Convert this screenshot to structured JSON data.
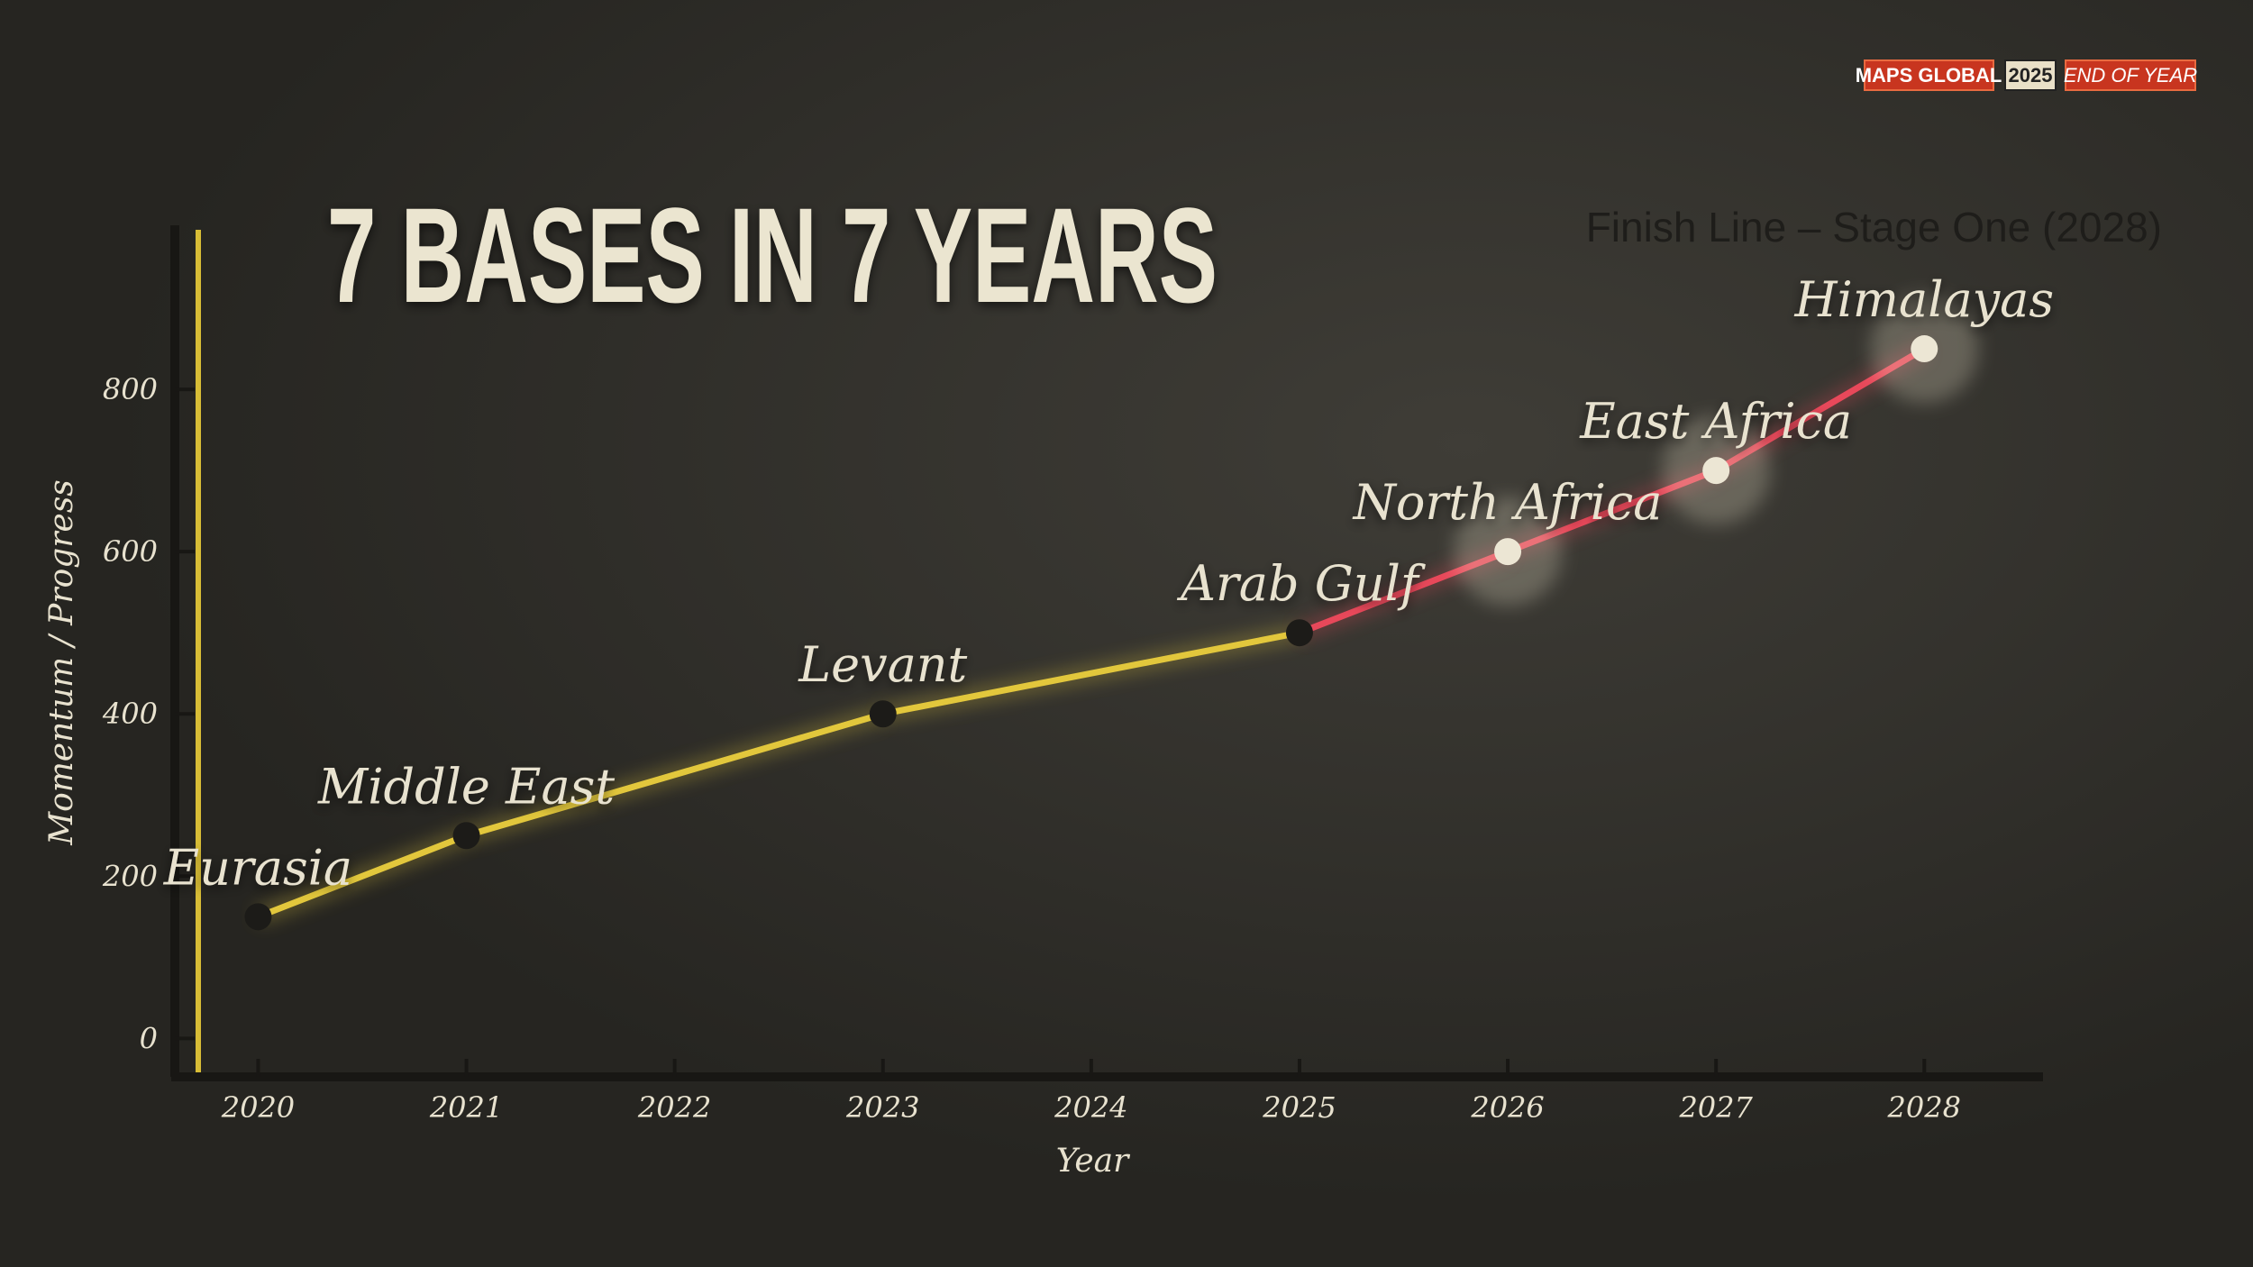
{
  "badges": [
    "MAPS GLOBAL",
    "2025",
    "END OF YEAR"
  ],
  "chart_data": {
    "type": "line",
    "title": "7 BASES IN 7 YEARS",
    "annotation": "Finish Line – Stage One (2028)",
    "xlabel": "Year",
    "ylabel": "Momentum / Progress",
    "x": [
      2020,
      2021,
      2023,
      2025,
      2026,
      2027,
      2028
    ],
    "values": [
      150,
      250,
      400,
      500,
      600,
      700,
      850
    ],
    "point_labels": [
      "Eurasia",
      "Middle East",
      "Levant",
      "Arab Gulf",
      "North Africa",
      "East Africa",
      "Himalayas"
    ],
    "segment_colors": [
      "#e2c73c",
      "#e2c73c",
      "#e2c73c",
      "#e8485a",
      "#e8485a",
      "#e8485a"
    ],
    "marker_colors": [
      "#1c1b18",
      "#1c1b18",
      "#1c1b18",
      "#1c1b18",
      "#ece6d4",
      "#ece6d4",
      "#ece6d4"
    ],
    "xlim": [
      2019.6,
      2028.57
    ],
    "xticks": [
      2020,
      2021,
      2022,
      2023,
      2024,
      2025,
      2026,
      2027,
      2028
    ],
    "ylim": [
      -44,
      1000
    ],
    "yticks": [
      0,
      200,
      400,
      600,
      800
    ]
  }
}
